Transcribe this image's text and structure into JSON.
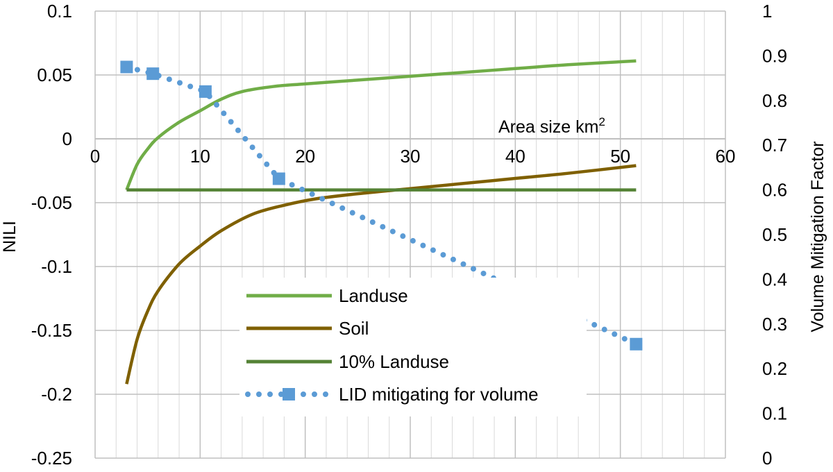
{
  "chart_data": {
    "type": "line",
    "xlabel": "Area size km",
    "xlabel_sup": "2",
    "ylabel_left": "NILI",
    "ylabel_right": "Volume Mitigation Factor",
    "xlim": [
      0,
      60
    ],
    "x_ticks": [
      "0",
      "10",
      "20",
      "30",
      "40",
      "50",
      "60"
    ],
    "x_tick_values": [
      0,
      10,
      20,
      30,
      40,
      50,
      60
    ],
    "ylim_left": [
      -0.25,
      0.1
    ],
    "y_left_ticks": [
      "0.1",
      "0.05",
      "0",
      "-0.05",
      "-0.1",
      "-0.15",
      "-0.2",
      "-0.25"
    ],
    "y_left_tick_values": [
      0.1,
      0.05,
      0,
      -0.05,
      -0.1,
      -0.15,
      -0.2,
      -0.25
    ],
    "ylim_right": [
      0,
      1
    ],
    "y_right_ticks": [
      "1",
      "0.9",
      "0.8",
      "0.7",
      "0.6",
      "0.5",
      "0.4",
      "0.3",
      "0.2",
      "0.1",
      "0"
    ],
    "y_right_tick_values": [
      1,
      0.9,
      0.8,
      0.7,
      0.6,
      0.5,
      0.4,
      0.3,
      0.2,
      0.1,
      0
    ],
    "grid": true,
    "minor_x_grid_step": 2,
    "legend_position": "bottom-center",
    "series": [
      {
        "name": "Landuse",
        "axis": "left",
        "style": "solid",
        "color": "#70ad47",
        "x": [
          3,
          4,
          5,
          6,
          8,
          10,
          12,
          14,
          17,
          20,
          25,
          30,
          35,
          40,
          45,
          51.5
        ],
        "y": [
          -0.04,
          -0.02,
          -0.008,
          0.001,
          0.013,
          0.022,
          0.031,
          0.037,
          0.041,
          0.043,
          0.046,
          0.049,
          0.052,
          0.055,
          0.058,
          0.061
        ]
      },
      {
        "name": "Soil",
        "axis": "left",
        "style": "solid",
        "color": "#7f6000",
        "x": [
          3,
          4,
          5,
          6,
          8,
          10,
          12,
          15,
          18,
          21,
          25,
          30,
          35,
          40,
          45,
          51.5
        ],
        "y": [
          -0.192,
          -0.157,
          -0.135,
          -0.119,
          -0.098,
          -0.084,
          -0.072,
          -0.059,
          -0.052,
          -0.047,
          -0.043,
          -0.039,
          -0.035,
          -0.031,
          -0.027,
          -0.021
        ]
      },
      {
        "name": "10% Landuse",
        "axis": "left",
        "style": "solid",
        "color": "#548235",
        "x": [
          3,
          51.5
        ],
        "y": [
          -0.04,
          -0.04
        ]
      },
      {
        "name": "LID mitigating for volume",
        "axis": "right",
        "style": "dotted",
        "color": "#5b9bd5",
        "x": [
          3,
          5.5,
          10.5,
          17.5,
          51.5
        ],
        "y": [
          0.875,
          0.86,
          0.82,
          0.625,
          0.255
        ]
      }
    ]
  }
}
